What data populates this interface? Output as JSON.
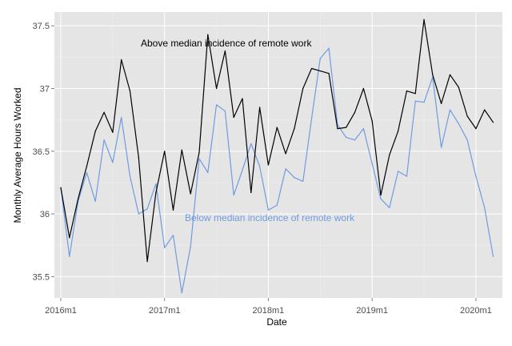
{
  "chart_data": {
    "type": "line",
    "title": "",
    "xlabel": "Date",
    "ylabel": "Monthly Average Hours Worked",
    "x_ticks": [
      "2016m1",
      "2017m1",
      "2018m1",
      "2019m1",
      "2020m1"
    ],
    "y_ticks": [
      35.5,
      36,
      36.5,
      37,
      37.5
    ],
    "y_tick_labels": [
      "35.5",
      "36",
      "36.5",
      "37",
      "37.5"
    ],
    "ylim": [
      35.33,
      37.61
    ],
    "x_start": "2016m1",
    "x_end": "2020m3",
    "grid": true,
    "background": "#e5e5e5",
    "series": [
      {
        "label": "Above median incidence of remote work",
        "color": "#000000",
        "values": [
          36.21,
          35.81,
          36.12,
          36.38,
          36.66,
          36.81,
          36.65,
          37.23,
          36.98,
          36.45,
          35.62,
          36.17,
          36.5,
          36.03,
          36.51,
          36.16,
          36.49,
          37.43,
          37.0,
          37.3,
          36.77,
          36.92,
          36.17,
          36.85,
          36.39,
          36.69,
          36.48,
          36.68,
          37.0,
          37.16,
          37.14,
          37.12,
          36.68,
          36.69,
          36.81,
          37.0,
          36.74,
          36.15,
          36.47,
          36.66,
          36.98,
          36.96,
          37.55,
          37.11,
          36.88,
          37.11,
          37.01,
          36.78,
          36.68,
          36.83,
          36.73
        ]
      },
      {
        "label": "Below median incidence of remote work",
        "color": "#6f9be0",
        "values": [
          36.21,
          35.66,
          36.1,
          36.33,
          36.1,
          36.59,
          36.41,
          36.77,
          36.3,
          36.0,
          36.04,
          36.24,
          35.73,
          35.83,
          35.37,
          35.74,
          36.44,
          36.33,
          36.87,
          36.82,
          36.15,
          36.35,
          36.56,
          36.38,
          36.03,
          36.07,
          36.36,
          36.29,
          36.26,
          36.76,
          37.24,
          37.32,
          36.71,
          36.61,
          36.59,
          36.68,
          36.4,
          36.12,
          36.05,
          36.34,
          36.3,
          36.9,
          36.89,
          37.09,
          36.53,
          36.83,
          36.72,
          36.59,
          36.3,
          36.05,
          35.66
        ]
      }
    ]
  }
}
